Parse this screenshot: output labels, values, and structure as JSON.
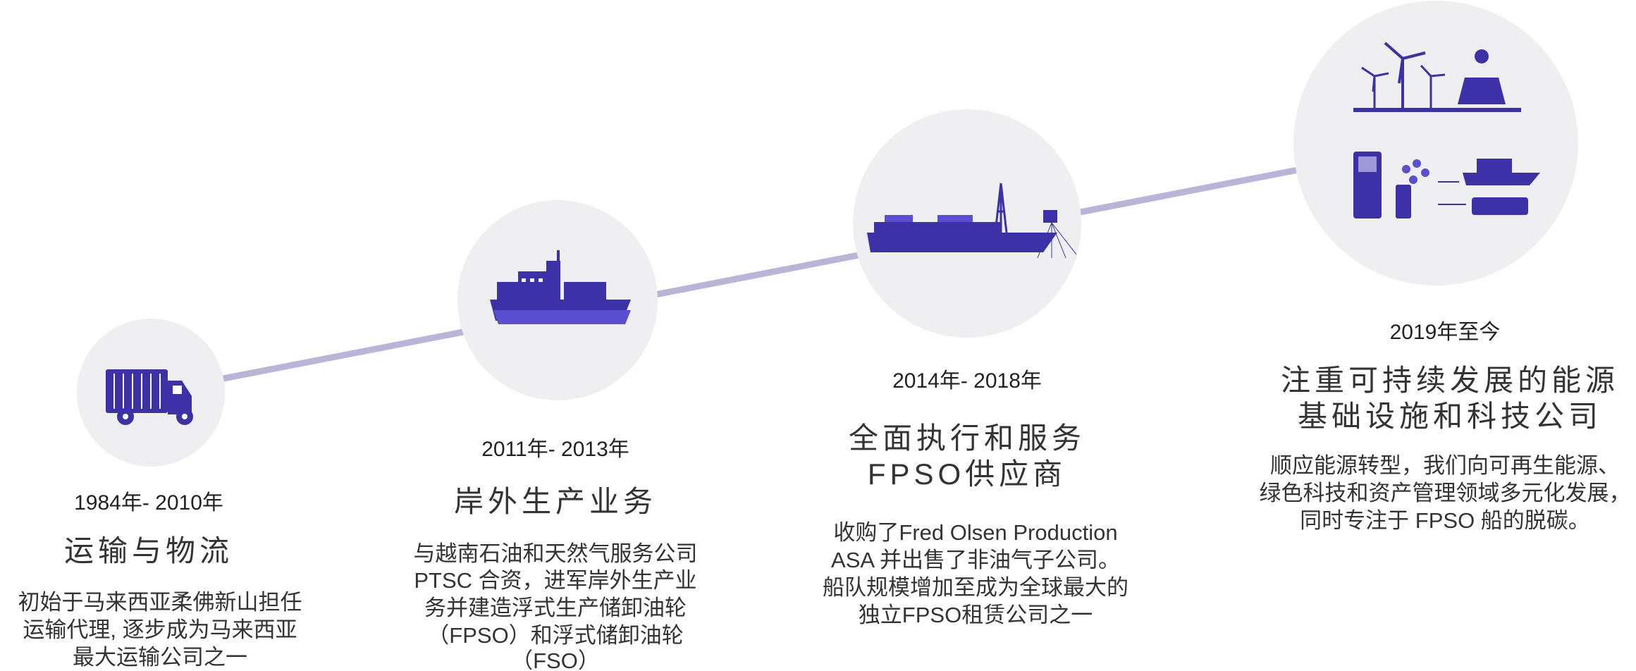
{
  "milestones": [
    {
      "period": "1984年- 2010年",
      "title": [
        "运输与物流"
      ],
      "description": [
        "初始于马来西亚柔佛新山担任",
        "运输代理, 逐步成为马来西亚",
        "最大运输公司之一"
      ]
    },
    {
      "period": "2011年- 2013年",
      "title": [
        "岸外生产业务"
      ],
      "description": [
        "与越南石油和天然气服务公司",
        "PTSC 合资，进军岸外生产业",
        "务并建造浮式生产储卸油轮",
        "（FPSO）和浮式储卸油轮",
        "（FSO）"
      ]
    },
    {
      "period": "2014年- 2018年",
      "title": [
        "全面执行和服务",
        "FPSO供应商"
      ],
      "description": [
        "收购了Fred Olsen Production",
        "ASA 并出售了非油气子公司。",
        "船队规模增加至成为全球最大的",
        "独立FPSO租赁公司之一"
      ]
    },
    {
      "period": "2019年至今",
      "title": [
        "注重可持续发展的能源",
        "基础设施和科技公司"
      ],
      "description": [
        "顺应能源转型，我们向可再生能源、",
        "绿色科技和资产管理领域多元化发展，",
        "同时专注于 FPSO 船的脱碳。"
      ]
    }
  ]
}
